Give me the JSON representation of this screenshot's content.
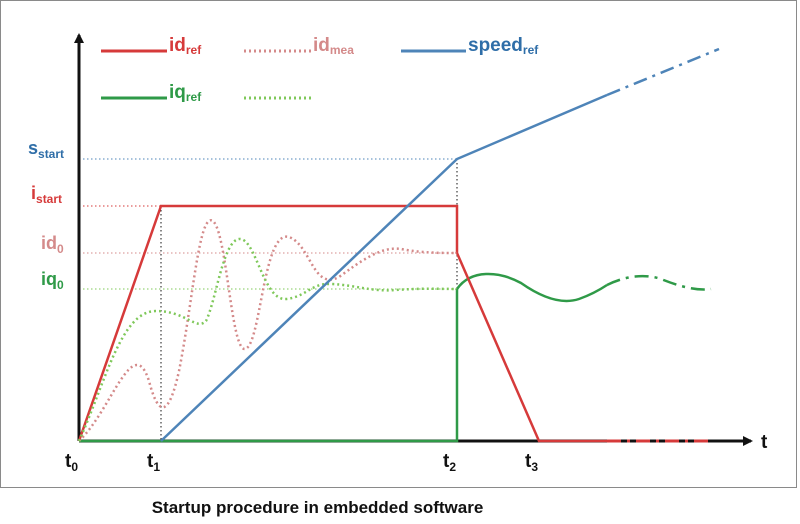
{
  "colors": {
    "red": "#d63a3a",
    "red_light": "#d48a8a",
    "blue": "#4e84b8",
    "green": "#2f9a48",
    "green_light": "#7fc85a",
    "blue_label": "#2f6ea8",
    "axis": "#111111"
  },
  "legend": {
    "id_ref": {
      "main": "id",
      "sub": "ref"
    },
    "id_mea": {
      "main": "id",
      "sub": "mea"
    },
    "speed_ref": {
      "main": "speed",
      "sub": "ref"
    },
    "iq_ref": {
      "main": "iq",
      "sub": "ref"
    }
  },
  "y_labels": {
    "s_start": {
      "main": "s",
      "sub": "start"
    },
    "i_start": {
      "main": "i",
      "sub": "start"
    },
    "id0": {
      "main": "id",
      "sub": "0"
    },
    "iq0": {
      "main": "iq",
      "sub": "0"
    }
  },
  "x_labels": {
    "t0": {
      "main": "t",
      "sub": "0"
    },
    "t1": {
      "main": "t",
      "sub": "1"
    },
    "t2": {
      "main": "t",
      "sub": "2"
    },
    "t3": {
      "main": "t",
      "sub": "3"
    },
    "t_axis": "t"
  },
  "caption": "Startup procedure in embedded software"
}
